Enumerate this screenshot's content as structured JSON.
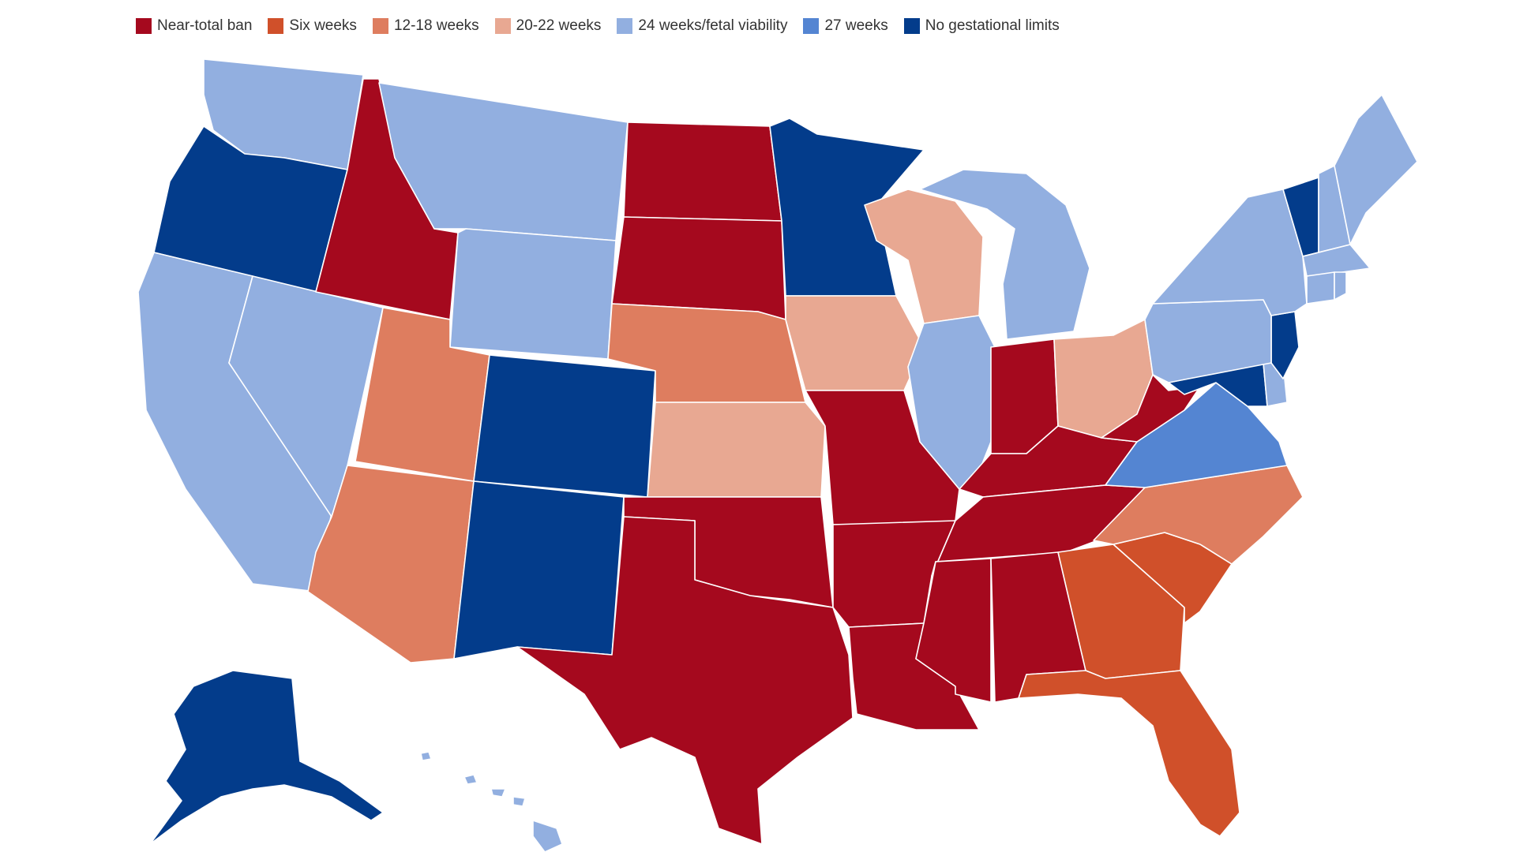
{
  "legend": [
    {
      "label": "Near-total ban",
      "color": "#a5091e",
      "category": "near_total_ban"
    },
    {
      "label": "Six weeks",
      "color": "#d0502a",
      "category": "six_weeks"
    },
    {
      "label": "12-18 weeks",
      "color": "#de7d5f",
      "category": "12_18_weeks"
    },
    {
      "label": "20-22 weeks",
      "color": "#e8a892",
      "category": "20_22_weeks"
    },
    {
      "label": "24 weeks/fetal viability",
      "color": "#92afe0",
      "category": "24_weeks_viability"
    },
    {
      "label": "27 weeks",
      "color": "#5485d2",
      "category": "27_weeks"
    },
    {
      "label": "No gestational limits",
      "color": "#033c8b",
      "category": "no_limits"
    }
  ],
  "states": {
    "WA": "24_weeks_viability",
    "OR": "no_limits",
    "CA": "24_weeks_viability",
    "NV": "24_weeks_viability",
    "ID": "near_total_ban",
    "MT": "24_weeks_viability",
    "WY": "24_weeks_viability",
    "UT": "12_18_weeks",
    "AZ": "12_18_weeks",
    "CO": "no_limits",
    "NM": "no_limits",
    "ND": "near_total_ban",
    "SD": "near_total_ban",
    "NE": "12_18_weeks",
    "KS": "20_22_weeks",
    "OK": "near_total_ban",
    "TX": "near_total_ban",
    "MN": "no_limits",
    "IA": "20_22_weeks",
    "MO": "near_total_ban",
    "AR": "near_total_ban",
    "LA": "near_total_ban",
    "WI": "20_22_weeks",
    "IL": "24_weeks_viability",
    "MI": "24_weeks_viability",
    "IN": "near_total_ban",
    "OH": "20_22_weeks",
    "KY": "near_total_ban",
    "TN": "near_total_ban",
    "MS": "near_total_ban",
    "AL": "near_total_ban",
    "GA": "six_weeks",
    "FL": "six_weeks",
    "SC": "six_weeks",
    "NC": "12_18_weeks",
    "VA": "27_weeks",
    "WV": "near_total_ban",
    "MD": "no_limits",
    "DE": "24_weeks_viability",
    "NJ": "no_limits",
    "PA": "24_weeks_viability",
    "NY": "24_weeks_viability",
    "VT": "no_limits",
    "NH": "24_weeks_viability",
    "ME": "24_weeks_viability",
    "MA": "24_weeks_viability",
    "CT": "24_weeks_viability",
    "RI": "24_weeks_viability",
    "AK": "no_limits",
    "HI": "24_weeks_viability"
  }
}
